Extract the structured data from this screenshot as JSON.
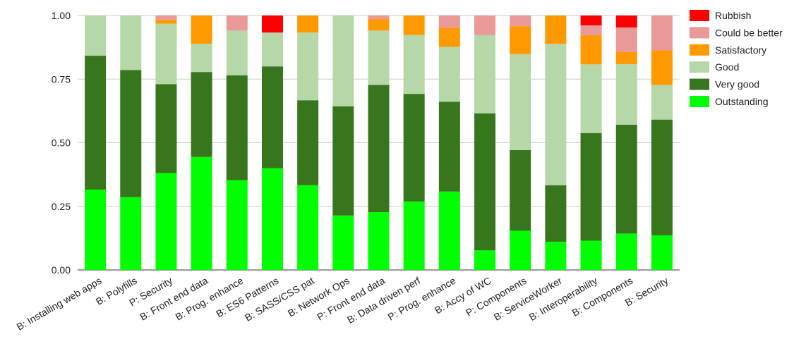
{
  "chart_data": {
    "type": "bar",
    "stacked": true,
    "categories": [
      "B: Installing web apps",
      "B: Polyfills",
      "P: Security",
      "B: Front end data",
      "B: Prog. enhance",
      "B: ES6 Patterns",
      "B: SASS/CSS pat",
      "B: Network Ops",
      "P: Front end data",
      "B: Data driven perf",
      "P: Prog. enhance",
      "B: Accy of WC",
      "P: Components",
      "B: ServiceWorker",
      "B: Interoperability",
      "B: Components",
      "B: Security"
    ],
    "series": [
      {
        "name": "Outstanding",
        "color": "#00ff00",
        "values": [
          0.316,
          0.286,
          0.381,
          0.444,
          0.353,
          0.4,
          0.333,
          0.214,
          0.227,
          0.269,
          0.308,
          0.077,
          0.154,
          0.111,
          0.115,
          0.143,
          0.136
        ]
      },
      {
        "name": "Very good",
        "color": "#38761d",
        "values": [
          0.526,
          0.5,
          0.349,
          0.334,
          0.412,
          0.4,
          0.334,
          0.429,
          0.5,
          0.423,
          0.353,
          0.538,
          0.317,
          0.222,
          0.423,
          0.428,
          0.455
        ]
      },
      {
        "name": "Good",
        "color": "#b6d7a8",
        "values": [
          0.158,
          0.214,
          0.238,
          0.111,
          0.176,
          0.133,
          0.266,
          0.357,
          0.214,
          0.231,
          0.216,
          0.308,
          0.377,
          0.556,
          0.27,
          0.238,
          0.136
        ]
      },
      {
        "name": "Satisfactory",
        "color": "#ff9900",
        "values": [
          0.0,
          0.0,
          0.016,
          0.111,
          0.0,
          0.0,
          0.067,
          0.0,
          0.045,
          0.077,
          0.075,
          0.0,
          0.11,
          0.111,
          0.115,
          0.048,
          0.136
        ]
      },
      {
        "name": "Could be better",
        "color": "#ea9999",
        "values": [
          0.0,
          0.0,
          0.016,
          0.0,
          0.059,
          0.0,
          0.0,
          0.0,
          0.014,
          0.0,
          0.048,
          0.077,
          0.042,
          0.0,
          0.038,
          0.096,
          0.137
        ]
      },
      {
        "name": "Rubbish",
        "color": "#ff0000",
        "values": [
          0.0,
          0.0,
          0.0,
          0.0,
          0.0,
          0.067,
          0.0,
          0.0,
          0.0,
          0.0,
          0.0,
          0.0,
          0.0,
          0.0,
          0.039,
          0.047,
          0.0
        ]
      }
    ],
    "ylim": [
      0,
      1
    ],
    "yticks": [
      "0.00",
      "0.25",
      "0.50",
      "0.75",
      "1.00"
    ],
    "ytick_values": [
      0,
      0.25,
      0.5,
      0.75,
      1
    ],
    "legend": {
      "position": "right",
      "order": [
        "Rubbish",
        "Could be better",
        "Satisfactory",
        "Good",
        "Very good",
        "Outstanding"
      ]
    },
    "grid": true,
    "title": "",
    "xlabel": "",
    "ylabel": ""
  }
}
